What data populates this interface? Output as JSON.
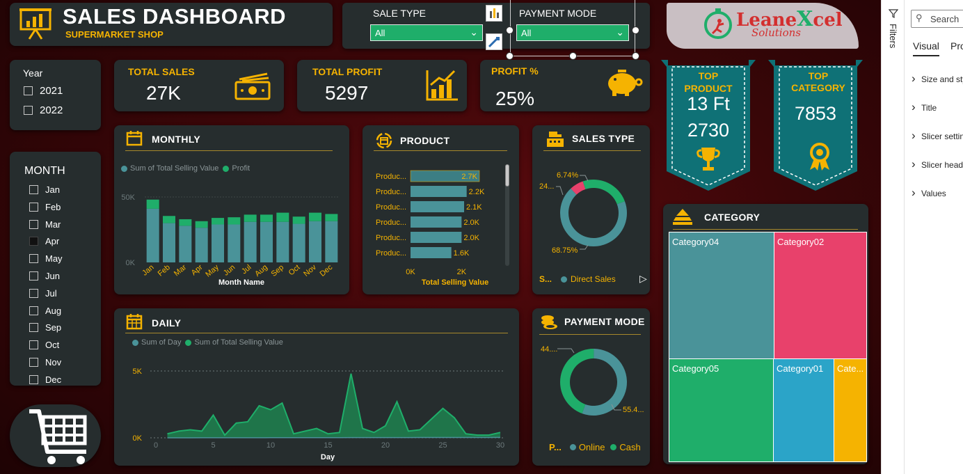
{
  "header": {
    "title": "SALES DASHBOARD",
    "subtitle": "SUPERMARKET SHOP"
  },
  "slicers": {
    "sale_type": {
      "label": "SALE TYPE",
      "value": "All"
    },
    "payment_mode": {
      "label": "PAYMENT MODE",
      "value": "All"
    }
  },
  "logo": {
    "line1_a": "Leane",
    "line1_b": "X",
    "line1_c": "cel",
    "line2": "Solutions"
  },
  "year_slicer": {
    "label": "Year",
    "options": [
      "2021",
      "2022"
    ]
  },
  "month_slicer": {
    "label": "MONTH",
    "options": [
      "Jan",
      "Feb",
      "Mar",
      "Apr",
      "May",
      "Jun",
      "Jul",
      "Aug",
      "Sep",
      "Oct",
      "Nov",
      "Dec"
    ]
  },
  "kpis": {
    "total_sales": {
      "label": "TOTAL SALES",
      "value": "27K"
    },
    "total_profit": {
      "label": "TOTAL PROFIT",
      "value": "5297"
    },
    "profit_pct": {
      "label": "PROFIT %",
      "value": "25%"
    }
  },
  "top_product": {
    "label1": "TOP",
    "label2": "PRODUCT",
    "name": "13 Ft",
    "value": "2730"
  },
  "top_category": {
    "label1": "TOP",
    "label2": "CATEGORY",
    "value": "7853"
  },
  "colors": {
    "teal": "#4a9399",
    "green": "#1fae6a",
    "pink": "#e8416b",
    "blue": "#2ba4c8",
    "orange": "#f5b301",
    "gold": "#f5b301"
  },
  "monthly": {
    "title": "MONTHLY",
    "legend": [
      "Sum of Total Selling Value",
      "Profit"
    ],
    "xlabel": "Month Name"
  },
  "product": {
    "title": "PRODUCT",
    "xlabel": "Total Selling Value"
  },
  "sales_type": {
    "title": "SALES TYPE",
    "legend_prefix": "S...",
    "legend_item": "Direct Sales",
    "labels": [
      "6.74%",
      "24...",
      "68.75%"
    ]
  },
  "daily": {
    "title": "DAILY",
    "legend": [
      "Sum of Day",
      "Sum of Total Selling Value"
    ],
    "xlabel": "Day"
  },
  "payment_mode": {
    "title": "PAYMENT MODE",
    "legend_prefix": "P...",
    "legend_items": [
      "Online",
      "Cash"
    ],
    "labels": [
      "44....",
      "55.4..."
    ]
  },
  "category": {
    "title": "CATEGORY"
  },
  "right_pane": {
    "filters_label": "Filters",
    "search_placeholder": "Search",
    "tabs": [
      "Visual",
      "Pro"
    ],
    "sections": [
      "Size and sty",
      "Title",
      "Slicer settin",
      "Slicer head",
      "Values"
    ]
  },
  "chart_data": [
    {
      "type": "bar",
      "title": "MONTHLY",
      "categories": [
        "Jan",
        "Feb",
        "Mar",
        "Apr",
        "May",
        "Jun",
        "Jul",
        "Aug",
        "Sep",
        "Oct",
        "Nov",
        "Dec"
      ],
      "series": [
        {
          "name": "Sum of Total Selling Value",
          "values": [
            41000,
            30000,
            28000,
            26500,
            29000,
            29000,
            31000,
            31000,
            31000,
            29500,
            31500,
            31500
          ]
        },
        {
          "name": "Profit",
          "values": [
            7000,
            5500,
            5000,
            5000,
            5000,
            5500,
            5500,
            5500,
            7000,
            5500,
            6500,
            5500
          ]
        }
      ],
      "ytick_labels": [
        "50K",
        "0K"
      ],
      "ylim": [
        0,
        50000
      ],
      "xlabel": "Month Name",
      "ylabel": ""
    },
    {
      "type": "bar",
      "title": "PRODUCT",
      "orientation": "horizontal",
      "categories": [
        "Produc...",
        "Produc...",
        "Produc...",
        "Produc...",
        "Produc...",
        "Produc..."
      ],
      "values": [
        2700,
        2200,
        2100,
        2000,
        2000,
        1600
      ],
      "value_labels": [
        "2.7K",
        "2.2K",
        "2.1K",
        "2.0K",
        "2.0K",
        "1.6K"
      ],
      "xtick_labels": [
        "0K",
        "2K"
      ],
      "xlim": [
        0,
        3000
      ],
      "xlabel": "Total Selling Value"
    },
    {
      "type": "pie",
      "title": "SALES TYPE",
      "donut": true,
      "slices": [
        {
          "label": "6.74%",
          "value": 6.74,
          "color": "#e8416b"
        },
        {
          "label": "24...",
          "value": 24.51,
          "color": "#1fae6a"
        },
        {
          "label": "68.75%",
          "value": 68.75,
          "color": "#4a9399"
        }
      ]
    },
    {
      "type": "area",
      "title": "DAILY",
      "x": [
        1,
        2,
        3,
        4,
        5,
        6,
        7,
        8,
        9,
        10,
        11,
        12,
        13,
        14,
        15,
        16,
        17,
        18,
        19,
        20,
        21,
        22,
        23,
        24,
        25,
        26,
        27,
        28,
        29,
        30
      ],
      "series": [
        {
          "name": "Sum of Day",
          "values": [
            1,
            2,
            3,
            4,
            5,
            6,
            7,
            8,
            9,
            10,
            11,
            12,
            13,
            14,
            15,
            16,
            17,
            18,
            19,
            20,
            21,
            22,
            23,
            24,
            25,
            26,
            27,
            28,
            29,
            30
          ]
        },
        {
          "name": "Sum of Total Selling Value",
          "values": [
            300,
            500,
            600,
            500,
            1700,
            200,
            1100,
            1200,
            2400,
            2100,
            2600,
            300,
            500,
            700,
            300,
            400,
            4800,
            700,
            400,
            900,
            2700,
            500,
            600,
            1400,
            2200,
            1500,
            300,
            200,
            200,
            400
          ]
        }
      ],
      "xticks": [
        0,
        5,
        10,
        15,
        20,
        25,
        30
      ],
      "ytick_labels": [
        "5K",
        "0K"
      ],
      "ylim": [
        0,
        5000
      ],
      "xlabel": "Day",
      "ylabel": ""
    },
    {
      "type": "pie",
      "title": "PAYMENT MODE",
      "donut": true,
      "slices": [
        {
          "label": "44....",
          "value": 44.6,
          "color": "#1fae6a"
        },
        {
          "label": "55.4...",
          "value": 55.4,
          "color": "#4a9399"
        }
      ]
    },
    {
      "type": "heatmap",
      "subtype": "treemap",
      "title": "CATEGORY",
      "cells": [
        {
          "label": "Category04",
          "value": 7853,
          "color": "#4a9399"
        },
        {
          "label": "Category02",
          "value": 6900,
          "color": "#e8416b"
        },
        {
          "label": "Category05",
          "value": 5200,
          "color": "#1fae6a"
        },
        {
          "label": "Category01",
          "value": 2400,
          "color": "#2ba4c8"
        },
        {
          "label": "Cate...",
          "value": 1300,
          "color": "#f5b301"
        }
      ]
    }
  ]
}
